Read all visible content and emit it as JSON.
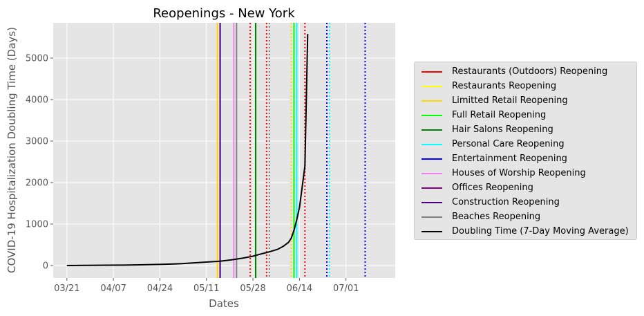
{
  "chart_data": {
    "type": "line",
    "title": "Reopenings - New York",
    "xlabel": "Dates",
    "ylabel": "COVID-19 Hospitalization Doubling Time (Days)",
    "x_ticks": [
      "03/21",
      "04/07",
      "04/24",
      "05/11",
      "05/28",
      "06/14",
      "07/01"
    ],
    "y_ticks": [
      0,
      1000,
      2000,
      3000,
      4000,
      5000
    ],
    "xlim": [
      "03/16",
      "07/19"
    ],
    "ylim": [
      -300,
      5850
    ],
    "grid": true,
    "legend_placement": "right, outside plot",
    "series": [
      {
        "name": "Doubling Time (7-Day Moving Average)",
        "color": "#000000",
        "x": [
          "03/21",
          "03/28",
          "04/04",
          "04/11",
          "04/18",
          "04/25",
          "05/02",
          "05/09",
          "05/16",
          "05/20",
          "05/24",
          "05/28",
          "05/31",
          "06/03",
          "06/06",
          "06/08",
          "06/10",
          "06/11",
          "06/12",
          "06/13",
          "06/14",
          "06/15",
          "06/16",
          "06/17"
        ],
        "y": [
          0,
          3,
          8,
          10,
          18,
          28,
          45,
          75,
          105,
          135,
          175,
          225,
          280,
          330,
          390,
          460,
          560,
          660,
          850,
          1100,
          1400,
          1900,
          2400,
          5580
        ]
      }
    ],
    "vertical_lines": [
      {
        "name": "Restaurants (Outdoors) Reopening",
        "color": "#ff0000",
        "date": "05/27",
        "style": "dotted"
      },
      {
        "name": "Restaurants (Outdoors) Reopening",
        "color": "#ff0000",
        "date": "06/02",
        "style": "dotted"
      },
      {
        "name": "Restaurants (Outdoors) Reopening",
        "color": "#ff0000",
        "date": "06/16",
        "style": "dotted"
      },
      {
        "name": "Restaurants Reopening",
        "color": "#ffff00",
        "date": "05/15",
        "style": "solid"
      },
      {
        "name": "Restaurants Reopening",
        "color": "#ffff00",
        "date": "06/11",
        "style": "dotted"
      },
      {
        "name": "Limitted Retail Reopening",
        "color": "#ffd700",
        "date": "05/15",
        "style": "solid"
      },
      {
        "name": "Limitted Retail Reopening",
        "color": "#ffd700",
        "date": "06/11",
        "style": "dotted"
      },
      {
        "name": "Full Retail Reopening",
        "color": "#00ff00",
        "date": "05/29",
        "style": "solid"
      },
      {
        "name": "Full Retail Reopening",
        "color": "#00ff00",
        "date": "06/12",
        "style": "solid"
      },
      {
        "name": "Hair Salons Reopening",
        "color": "#008000",
        "date": "05/29",
        "style": "solid"
      },
      {
        "name": "Personal Care Reopening",
        "color": "#00ffff",
        "date": "06/13",
        "style": "solid"
      },
      {
        "name": "Personal Care Reopening",
        "color": "#00ffff",
        "date": "06/25",
        "style": "dotted"
      },
      {
        "name": "Entertainment Reopening",
        "color": "#0000ff",
        "date": "06/24",
        "style": "dotted"
      },
      {
        "name": "Entertainment Reopening",
        "color": "#0000ff",
        "date": "07/08",
        "style": "dotted"
      },
      {
        "name": "Houses of Worship Reopening",
        "color": "#ee82ee",
        "date": "05/21",
        "style": "solid"
      },
      {
        "name": "Offices Reopening",
        "color": "#800080",
        "date": "05/16",
        "style": "solid"
      },
      {
        "name": "Construction Reopening",
        "color": "#4b0082",
        "date": "05/16",
        "style": "solid"
      },
      {
        "name": "Beaches Reopening",
        "color": "#808080",
        "date": "05/22",
        "style": "solid"
      },
      {
        "name": "Beaches Reopening",
        "color": "#808080",
        "date": "06/03",
        "style": "dotted"
      }
    ],
    "legend": [
      {
        "label": "Restaurants (Outdoors) Reopening",
        "color": "#ff0000"
      },
      {
        "label": "Restaurants Reopening",
        "color": "#ffff00"
      },
      {
        "label": "Limitted Retail Reopening",
        "color": "#ffd700"
      },
      {
        "label": "Full Retail Reopening",
        "color": "#00ff00"
      },
      {
        "label": "Hair Salons Reopening",
        "color": "#008000"
      },
      {
        "label": "Personal Care Reopening",
        "color": "#00ffff"
      },
      {
        "label": "Entertainment Reopening",
        "color": "#0000ff"
      },
      {
        "label": "Houses of Worship Reopening",
        "color": "#ee82ee"
      },
      {
        "label": "Offices Reopening",
        "color": "#800080"
      },
      {
        "label": "Construction Reopening",
        "color": "#4b0082"
      },
      {
        "label": "Beaches Reopening",
        "color": "#808080"
      },
      {
        "label": "Doubling Time (7-Day Moving Average)",
        "color": "#000000"
      }
    ]
  }
}
